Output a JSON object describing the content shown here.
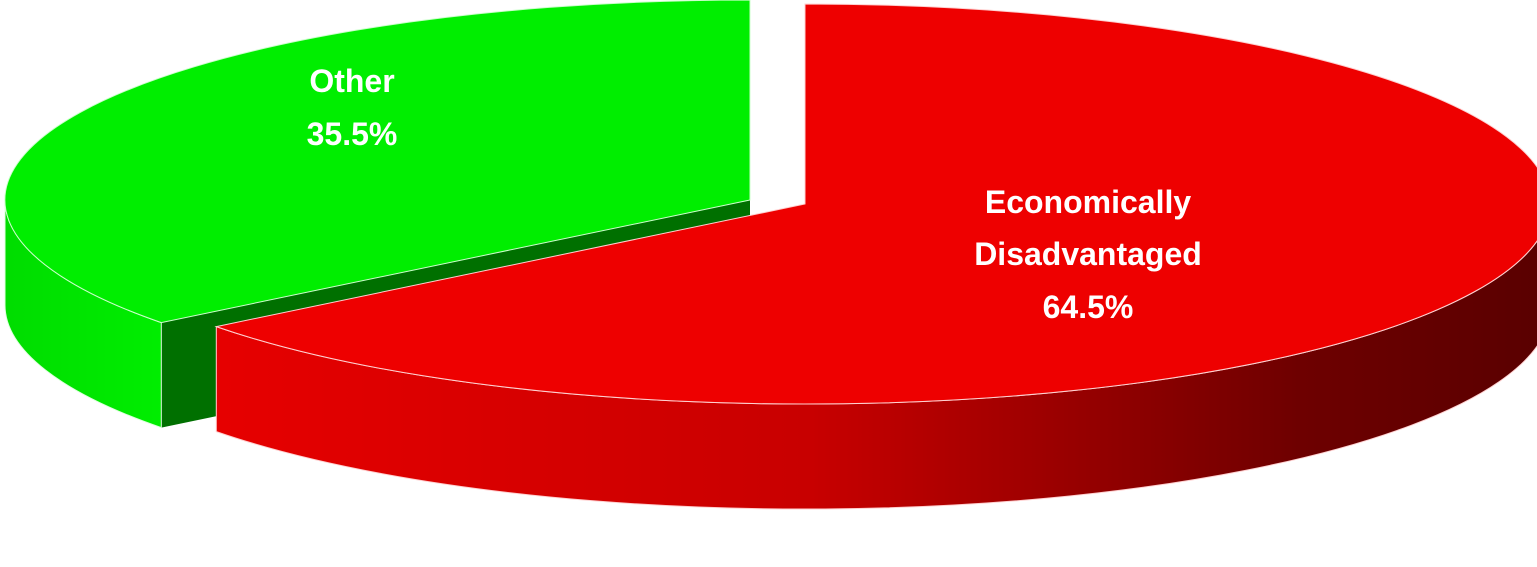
{
  "chart_data": {
    "type": "pie",
    "style": "3d-exploded",
    "slices": [
      {
        "name": "Economically Disadvantaged",
        "label_lines": [
          "Economically",
          "Disadvantaged"
        ],
        "value": 64.5,
        "value_label": "64.5%",
        "color": "#ee0000",
        "dark_color": "#5a0000"
      },
      {
        "name": "Other",
        "label_lines": [
          "Other"
        ],
        "value": 35.5,
        "value_label": "35.5%",
        "color": "#00ee00",
        "dark_color": "#007000"
      }
    ]
  }
}
